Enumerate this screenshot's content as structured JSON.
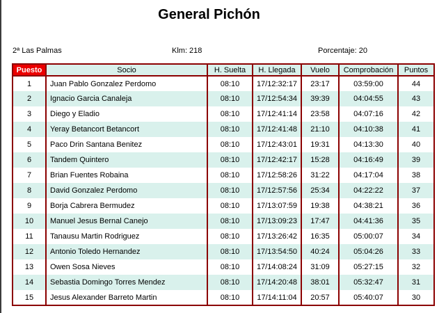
{
  "page": {
    "title": "General Pichón"
  },
  "meta": {
    "race": "2ª Las Palmas",
    "distance": "Klm: 218",
    "percentage": "Porcentaje: 20"
  },
  "table": {
    "headers": [
      "Puesto",
      "Socio",
      "H. Suelta",
      "H. Llegada",
      "Vuelo",
      "Comprobación",
      "Puntos"
    ],
    "rows": [
      [
        "1",
        "Juan Pablo Gonzalez Perdomo",
        "08:10",
        "17/12:32:17",
        "23:17",
        "03:59:00",
        "44"
      ],
      [
        "2",
        "Ignacio Garcia Canaleja",
        "08:10",
        "17/12:54:34",
        "39:39",
        "04:04:55",
        "43"
      ],
      [
        "3",
        "Diego y Eladio",
        "08:10",
        "17/12:41:14",
        "23:58",
        "04:07:16",
        "42"
      ],
      [
        "4",
        "Yeray Betancort Betancort",
        "08:10",
        "17/12:41:48",
        "21:10",
        "04:10:38",
        "41"
      ],
      [
        "5",
        "Paco Drin Santana Benitez",
        "08:10",
        "17/12:43:01",
        "19:31",
        "04:13:30",
        "40"
      ],
      [
        "6",
        "Tandem Quintero",
        "08:10",
        "17/12:42:17",
        "15:28",
        "04:16:49",
        "39"
      ],
      [
        "7",
        "Brian Fuentes Robaina",
        "08:10",
        "17/12:58:26",
        "31:22",
        "04:17:04",
        "38"
      ],
      [
        "8",
        "David Gonzalez Perdomo",
        "08:10",
        "17/12:57:56",
        "25:34",
        "04:22:22",
        "37"
      ],
      [
        "9",
        "Borja Cabrera Bermudez",
        "08:10",
        "17/13:07:59",
        "19:38",
        "04:38:21",
        "36"
      ],
      [
        "10",
        "Manuel Jesus Bernal Canejo",
        "08:10",
        "17/13:09:23",
        "17:47",
        "04:41:36",
        "35"
      ],
      [
        "11",
        "Tanausu Martin Rodriguez",
        "08:10",
        "17/13:26:42",
        "16:35",
        "05:00:07",
        "34"
      ],
      [
        "12",
        "Antonio Toledo Hernandez",
        "08:10",
        "17/13:54:50",
        "40:24",
        "05:04:26",
        "33"
      ],
      [
        "13",
        "Owen Sosa Nieves",
        "08:10",
        "17/14:08:24",
        "31:09",
        "05:27:15",
        "32"
      ],
      [
        "14",
        "Sebastia Domingo Torres Mendez",
        "08:10",
        "17/14:20:48",
        "38:01",
        "05:32:47",
        "31"
      ],
      [
        "15",
        "Jesus Alexander Barreto Martin",
        "08:10",
        "17/14:11:04",
        "20:57",
        "05:40:07",
        "30"
      ]
    ]
  },
  "colors": {
    "table_border": "#8b0000",
    "header_accent_red": "#eb0000",
    "row_alternate_teal": "#d9f1ec",
    "text": "#000000",
    "window_edge": "#3c3c3c"
  }
}
